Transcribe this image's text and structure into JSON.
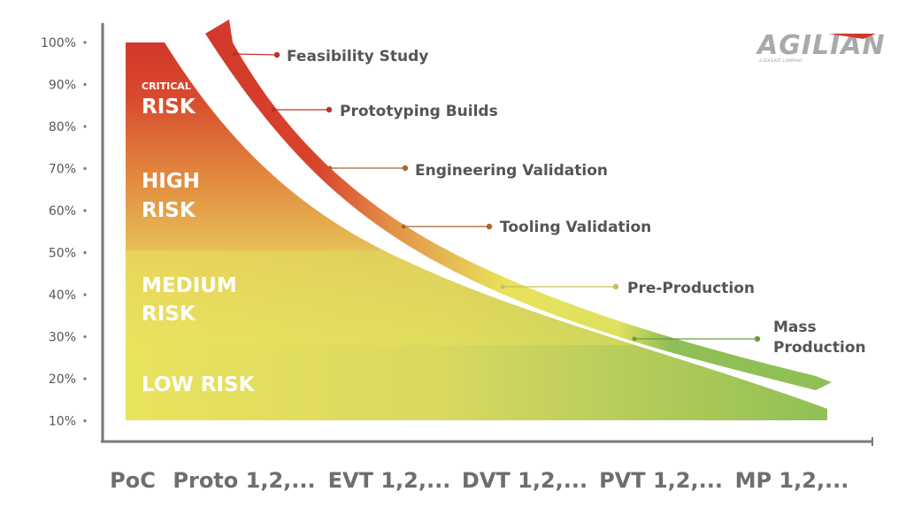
{
  "logo": {
    "name": "AGILIAN",
    "subtitle": "A SOFEAST COMPANY"
  },
  "chart_data": {
    "type": "area",
    "y_ticks": [
      "100%",
      "90%",
      "80%",
      "70%",
      "60%",
      "50%",
      "40%",
      "30%",
      "20%",
      "10%"
    ],
    "categories": [
      "PoC",
      "Proto 1,2,...",
      "EVT 1,2,...",
      "DVT 1,2,...",
      "PVT 1,2,...",
      "MP 1,2,..."
    ],
    "risk_zones": [
      {
        "small": "CRITICAL",
        "label": "RISK",
        "range": [
          80,
          100
        ],
        "color": "#d2382b"
      },
      {
        "label": "HIGH",
        "label2": "RISK",
        "range": [
          52,
          80
        ],
        "color": "#e07a3a"
      },
      {
        "label": "MEDIUM",
        "label2": "RISK",
        "range": [
          28,
          52
        ],
        "color": "#e8b54e"
      },
      {
        "label": "LOW RISK",
        "range": [
          10,
          28
        ],
        "color": "#a7c45a"
      }
    ],
    "stages": [
      "Feasibility Study",
      "Prototyping Builds",
      "Engineering Validation",
      "Tooling Validation",
      "Pre-Production",
      "Mass Production"
    ],
    "colors": {
      "critical": "#d2382b",
      "high": "#e07a3a",
      "medium": "#e9c04c",
      "yellow": "#e8e35c",
      "low": "#8fbf55",
      "axis": "#7a7a7a",
      "text": "#555555"
    }
  }
}
